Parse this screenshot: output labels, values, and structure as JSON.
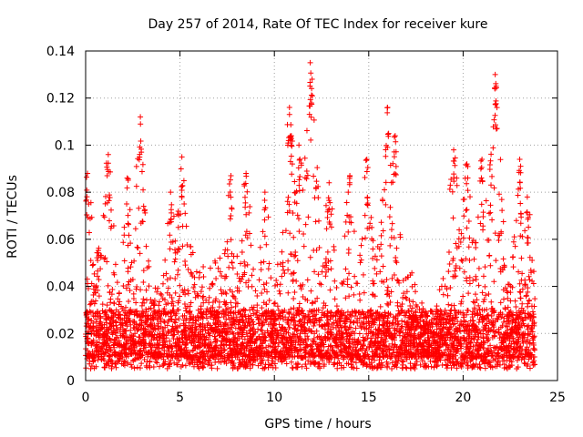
{
  "chart_data": {
    "type": "scatter",
    "title": "Day 257 of 2014, Rate Of TEC Index for receiver kure",
    "xlabel": "GPS time / hours",
    "ylabel": "ROTI / TECUs",
    "xlim": [
      0,
      25
    ],
    "ylim": [
      0,
      0.14
    ],
    "xticks": [
      0,
      5,
      10,
      15,
      20,
      25
    ],
    "xtick_labels": [
      "0",
      "5",
      "10",
      "15",
      "20",
      "25"
    ],
    "yticks": [
      0,
      0.02,
      0.04,
      0.06,
      0.08,
      0.1,
      0.12,
      0.14
    ],
    "ytick_labels": [
      "0",
      "0.02",
      "0.04",
      "0.06",
      "0.08",
      "0.1",
      "0.12",
      "0.14"
    ],
    "grid": true,
    "marker": "+",
    "marker_color": "#ff0000",
    "series": [
      {
        "name": "ROTI",
        "x_range": [
          0,
          23.8
        ],
        "baseline_band": [
          0.005,
          0.03
        ],
        "notable_peaks": [
          {
            "x": 0.1,
            "y": 0.088
          },
          {
            "x": 1.2,
            "y": 0.096
          },
          {
            "x": 2.2,
            "y": 0.086
          },
          {
            "x": 2.9,
            "y": 0.112
          },
          {
            "x": 4.5,
            "y": 0.08
          },
          {
            "x": 5.1,
            "y": 0.095
          },
          {
            "x": 7.7,
            "y": 0.087
          },
          {
            "x": 8.5,
            "y": 0.088
          },
          {
            "x": 9.5,
            "y": 0.08
          },
          {
            "x": 10.8,
            "y": 0.116
          },
          {
            "x": 10.9,
            "y": 0.104
          },
          {
            "x": 11.3,
            "y": 0.1
          },
          {
            "x": 11.9,
            "y": 0.135
          },
          {
            "x": 12.0,
            "y": 0.128
          },
          {
            "x": 12.9,
            "y": 0.084
          },
          {
            "x": 14.0,
            "y": 0.087
          },
          {
            "x": 14.9,
            "y": 0.094
          },
          {
            "x": 16.0,
            "y": 0.116
          },
          {
            "x": 16.4,
            "y": 0.104
          },
          {
            "x": 19.5,
            "y": 0.098
          },
          {
            "x": 20.2,
            "y": 0.092
          },
          {
            "x": 21.0,
            "y": 0.094
          },
          {
            "x": 21.7,
            "y": 0.13
          },
          {
            "x": 21.75,
            "y": 0.125
          },
          {
            "x": 23.0,
            "y": 0.094
          },
          {
            "x": 23.4,
            "y": 0.078
          }
        ]
      }
    ]
  }
}
